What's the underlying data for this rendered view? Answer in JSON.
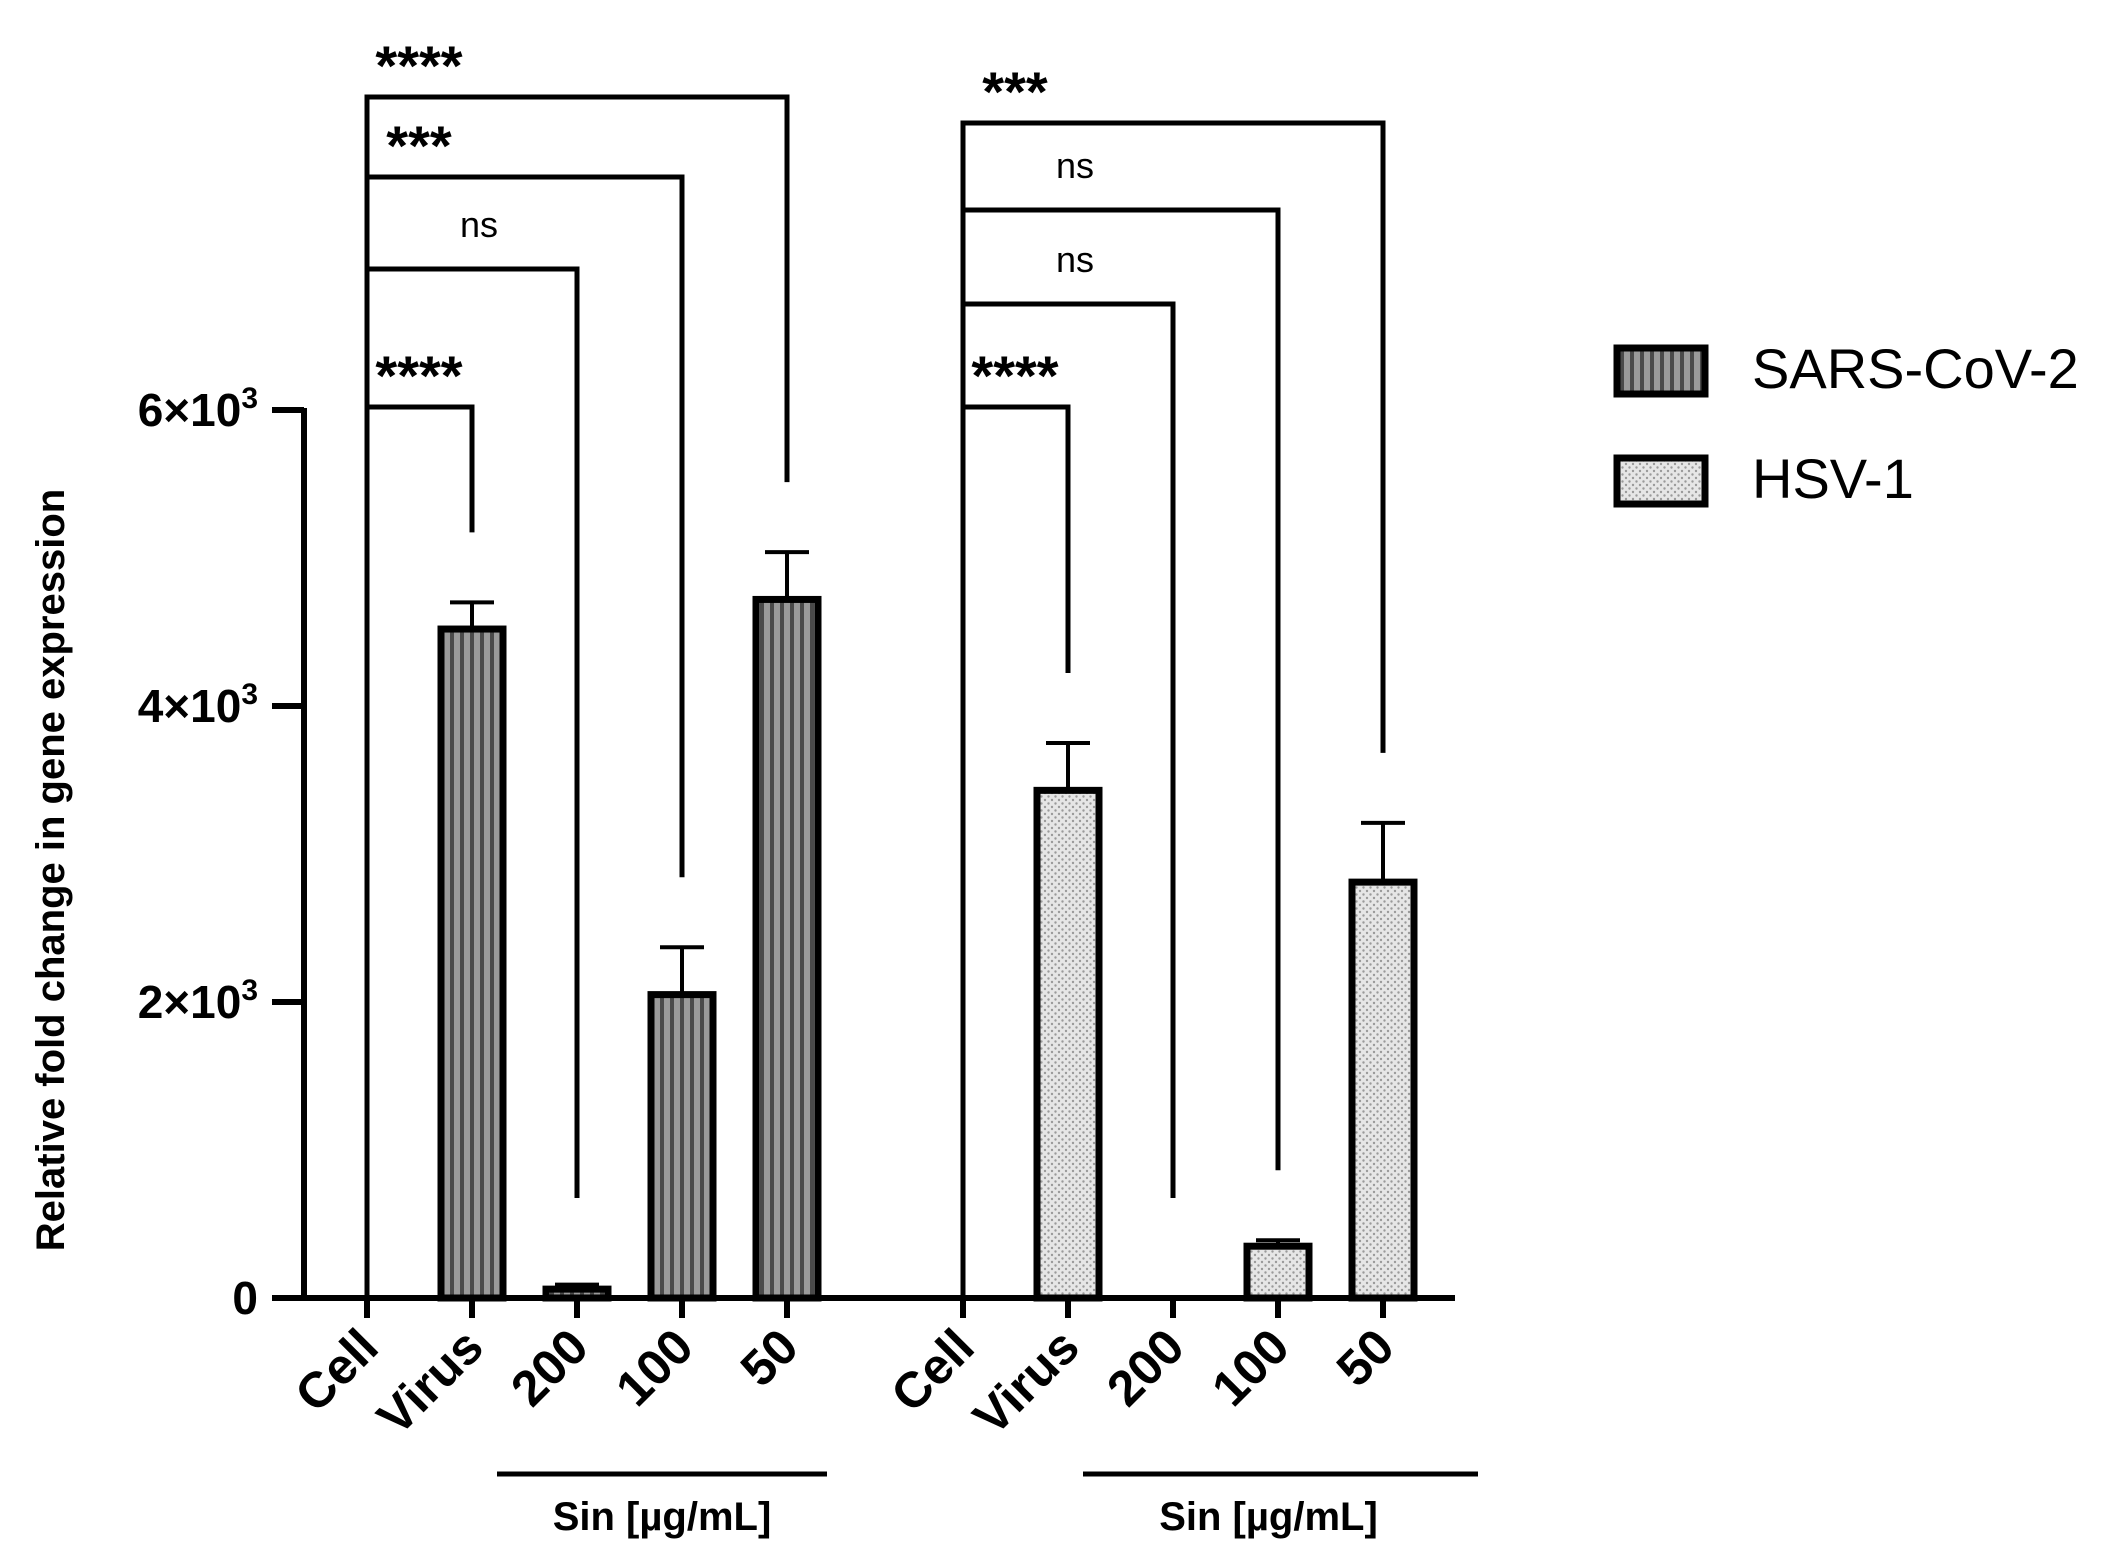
{
  "chart_data": {
    "type": "bar",
    "title": "",
    "xlabel": "",
    "ylabel": "Relative fold change in gene expression",
    "ylim": [
      0,
      6000
    ],
    "yticks": [
      {
        "value": 0,
        "label": "0"
      },
      {
        "value": 2000,
        "label": "2×10",
        "exp": "3"
      },
      {
        "value": 4000,
        "label": "4×10",
        "exp": "3"
      },
      {
        "value": 6000,
        "label": "6×10",
        "exp": "3"
      }
    ],
    "legend_position": "right",
    "groups": [
      {
        "series": "SARS-CoV-2",
        "categories": [
          "Cell",
          "Virus",
          "200",
          "100",
          "50"
        ],
        "values": [
          0,
          4520,
          60,
          2050,
          4720
        ],
        "errors": [
          0,
          180,
          30,
          320,
          320
        ],
        "bracket_label": "Sin [µg/mL]",
        "comparisons": [
          {
            "from": "Cell",
            "to": "Virus",
            "label": "****"
          },
          {
            "from": "Cell",
            "to": "200",
            "label": "ns"
          },
          {
            "from": "Cell",
            "to": "100",
            "label": "***"
          },
          {
            "from": "Cell",
            "to": "50",
            "label": "****"
          }
        ]
      },
      {
        "series": "HSV-1",
        "categories": [
          "Cell",
          "Virus",
          "200",
          "100",
          "50"
        ],
        "values": [
          0,
          3430,
          0,
          350,
          2810
        ],
        "errors": [
          0,
          320,
          0,
          40,
          400
        ],
        "bracket_label": "Sin [µg/mL]",
        "comparisons": [
          {
            "from": "Cell",
            "to": "Virus",
            "label": "****"
          },
          {
            "from": "Cell",
            "to": "200",
            "label": "ns"
          },
          {
            "from": "Cell",
            "to": "100",
            "label": "ns"
          },
          {
            "from": "Cell",
            "to": "50",
            "label": "***"
          }
        ]
      }
    ],
    "legend": [
      {
        "name": "SARS-CoV-2",
        "pattern": "stripes"
      },
      {
        "name": "HSV-1",
        "pattern": "dots"
      }
    ]
  }
}
